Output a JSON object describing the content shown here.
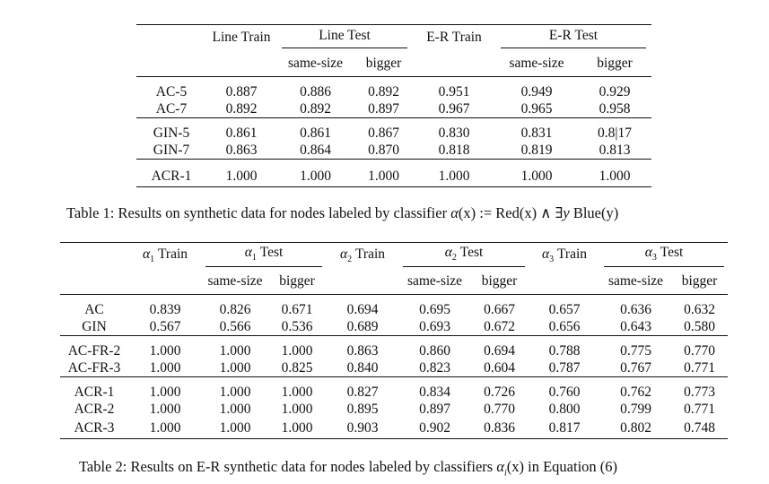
{
  "table1": {
    "headers": {
      "row_label": "",
      "line_train": "Line Train",
      "line_test": "Line Test",
      "er_train": "E-R Train",
      "er_test": "E-R Test",
      "same_size": "same-size",
      "bigger": "bigger"
    },
    "groups": [
      [
        {
          "label": "AC-5",
          "cells": [
            "0.887",
            "0.886",
            "0.892",
            "0.951",
            "0.949",
            "0.929"
          ]
        },
        {
          "label": "AC-7",
          "cells": [
            "0.892",
            "0.892",
            "0.897",
            "0.967",
            "0.965",
            "0.958"
          ]
        }
      ],
      [
        {
          "label": "GIN-5",
          "cells": [
            "0.861",
            "0.861",
            "0.867",
            "0.830",
            "0.831",
            "0.8|17"
          ]
        },
        {
          "label": "GIN-7",
          "cells": [
            "0.863",
            "0.864",
            "0.870",
            "0.818",
            "0.819",
            "0.813"
          ]
        }
      ],
      [
        {
          "label": "ACR-1",
          "cells": [
            "1.000",
            "1.000",
            "1.000",
            "1.000",
            "1.000",
            "1.000"
          ]
        }
      ]
    ],
    "caption": {
      "prefix": "Table 1: Results on synthetic data for nodes labeled by classifier ",
      "alpha": "α",
      "x": "(x)",
      "assign": " := ",
      "red": "Red",
      "rx": "(x)",
      "and": " ∧ ∃",
      "y": "y",
      "blue": " Blue",
      "by": "(y)"
    }
  },
  "table2": {
    "headers": {
      "a1_train": "Train",
      "a1_test": "Test",
      "a2_train": "Train",
      "a2_test": "Test",
      "a3_train": "Train",
      "a3_test": "Test",
      "alpha": "α",
      "sub1": "1",
      "sub2": "2",
      "sub3": "3",
      "same_size": "same-size",
      "bigger": "bigger"
    },
    "groups": [
      [
        {
          "label": "AC",
          "cells": [
            "0.839",
            "0.826",
            "0.671",
            "0.694",
            "0.695",
            "0.667",
            "0.657",
            "0.636",
            "0.632"
          ]
        },
        {
          "label": "GIN",
          "cells": [
            "0.567",
            "0.566",
            "0.536",
            "0.689",
            "0.693",
            "0.672",
            "0.656",
            "0.643",
            "0.580"
          ]
        }
      ],
      [
        {
          "label": "AC-FR-2",
          "cells": [
            "1.000",
            "1.000",
            "1.000",
            "0.863",
            "0.860",
            "0.694",
            "0.788",
            "0.775",
            "0.770"
          ]
        },
        {
          "label": "AC-FR-3",
          "cells": [
            "1.000",
            "1.000",
            "0.825",
            "0.840",
            "0.823",
            "0.604",
            "0.787",
            "0.767",
            "0.771"
          ]
        }
      ],
      [
        {
          "label": "ACR-1",
          "cells": [
            "1.000",
            "1.000",
            "1.000",
            "0.827",
            "0.834",
            "0.726",
            "0.760",
            "0.762",
            "0.773"
          ]
        },
        {
          "label": "ACR-2",
          "cells": [
            "1.000",
            "1.000",
            "1.000",
            "0.895",
            "0.897",
            "0.770",
            "0.800",
            "0.799",
            "0.771"
          ]
        },
        {
          "label": "ACR-3",
          "cells": [
            "1.000",
            "1.000",
            "1.000",
            "0.903",
            "0.902",
            "0.836",
            "0.817",
            "0.802",
            "0.748"
          ]
        }
      ]
    ],
    "caption": {
      "prefix": "Table 2: Results on E-R synthetic data for nodes labeled by classifiers ",
      "alpha": "α",
      "sub": "i",
      "x": "(x)",
      "suffix": " in Equation (6)"
    }
  }
}
